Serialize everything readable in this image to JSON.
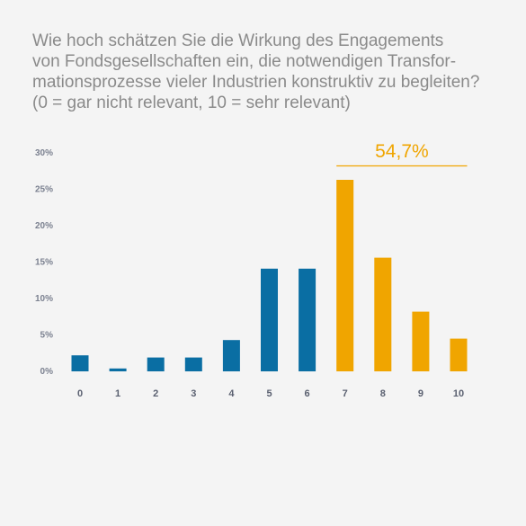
{
  "title_lines": [
    "Wie hoch schätzen Sie die Wirkung des Engagements",
    "von Fondsgesellschaften ein, die notwendigen Transfor-",
    "mationsprozesse vieler Industrien konstruktiv zu begleiten?",
    "(0 = gar nicht relevant, 10 = sehr relevant)"
  ],
  "chart_data": {
    "type": "bar",
    "title": "Wie hoch schätzen Sie die Wirkung des Engagements von Fondsgesellschaften ein, die notwendigen Transformationsprozesse vieler Industrien konstruktiv zu begleiten? (0 = gar nicht relevant, 10 = sehr relevant)",
    "categories": [
      "0",
      "1",
      "2",
      "3",
      "4",
      "5",
      "6",
      "7",
      "8",
      "9",
      "10"
    ],
    "values": [
      2.2,
      0.4,
      1.9,
      1.9,
      4.3,
      14.1,
      14.1,
      26.3,
      15.6,
      8.2,
      4.5
    ],
    "ylim": [
      0,
      30
    ],
    "yticks": [
      0,
      5,
      10,
      15,
      20,
      25,
      30
    ],
    "ytick_labels": [
      "0%",
      "5%",
      "10%",
      "15%",
      "20%",
      "25%",
      "30%"
    ],
    "grid": false,
    "colors": {
      "low": "#0a6ea3",
      "high": "#f0a500"
    },
    "highlight_from_category": "7",
    "annotation": {
      "text": "54,7%",
      "span": [
        "7",
        "10"
      ],
      "color": "#f0a500"
    }
  }
}
